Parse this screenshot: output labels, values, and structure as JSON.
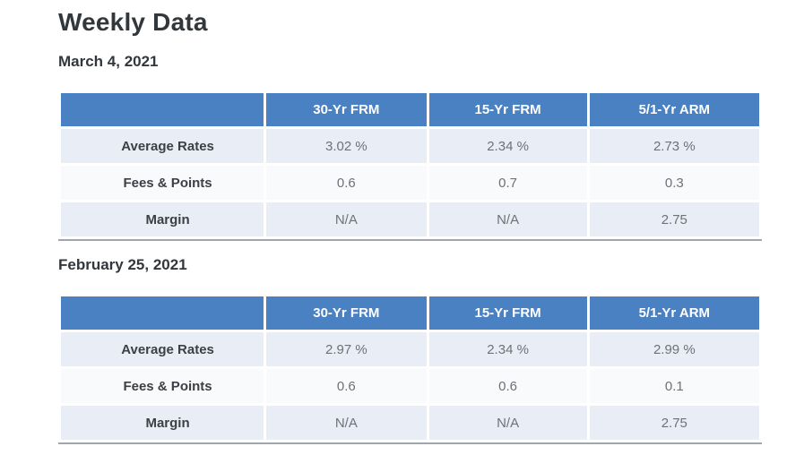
{
  "page": {
    "title": "Weekly Data"
  },
  "colors": {
    "header_bg": "#4a81c3",
    "header_text": "#ffffff",
    "row_alt_bg": "#e9eef6",
    "row_bg": "#f8fafc",
    "label_text": "#3c4045",
    "value_text": "#6d7278",
    "title_text": "#32373c",
    "bottom_border": "#a0a6ad"
  },
  "tables": [
    {
      "date": "March 4, 2021",
      "columns": [
        "30-Yr FRM",
        "15-Yr FRM",
        "5/1-Yr ARM"
      ],
      "rows": [
        {
          "label": "Average Rates",
          "values": [
            "3.02 %",
            "2.34 %",
            "2.73 %"
          ]
        },
        {
          "label": "Fees & Points",
          "values": [
            "0.6",
            "0.7",
            "0.3"
          ]
        },
        {
          "label": "Margin",
          "values": [
            "N/A",
            "N/A",
            "2.75"
          ]
        }
      ]
    },
    {
      "date": "February 25, 2021",
      "columns": [
        "30-Yr FRM",
        "15-Yr FRM",
        "5/1-Yr ARM"
      ],
      "rows": [
        {
          "label": "Average Rates",
          "values": [
            "2.97 %",
            "2.34 %",
            "2.99 %"
          ]
        },
        {
          "label": "Fees & Points",
          "values": [
            "0.6",
            "0.6",
            "0.1"
          ]
        },
        {
          "label": "Margin",
          "values": [
            "N/A",
            "N/A",
            "2.75"
          ]
        }
      ]
    }
  ]
}
